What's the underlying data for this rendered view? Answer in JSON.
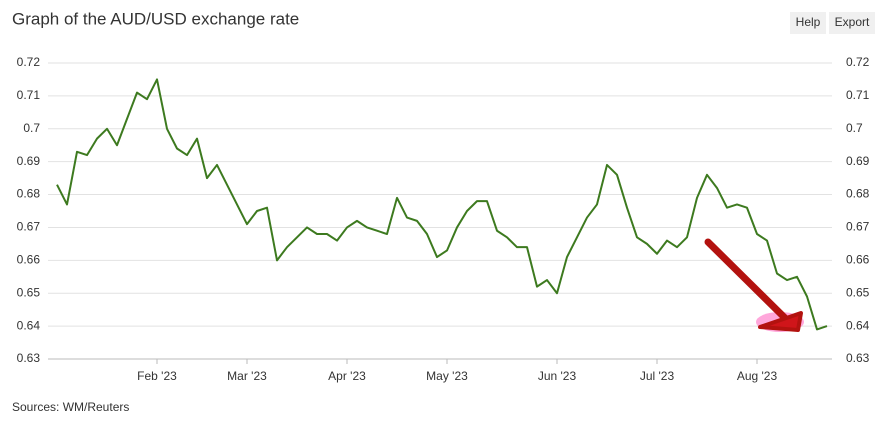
{
  "chart_data": {
    "type": "line",
    "title": "Graph of the AUD/USD exchange rate",
    "source": "Sources: WM/Reuters",
    "buttons": [
      "Help",
      "Export"
    ],
    "categories": [
      null,
      null,
      null,
      null,
      null,
      null,
      null,
      null,
      null,
      null,
      "Feb '23",
      null,
      null,
      null,
      null,
      null,
      null,
      null,
      null,
      "Mar '23",
      null,
      null,
      null,
      null,
      null,
      null,
      null,
      null,
      null,
      "Apr '23",
      null,
      null,
      null,
      null,
      null,
      null,
      null,
      null,
      null,
      "May '23",
      null,
      null,
      null,
      null,
      null,
      null,
      null,
      null,
      null,
      null,
      "Jun '23",
      null,
      null,
      null,
      null,
      null,
      null,
      null,
      null,
      null,
      "Jul '23",
      null,
      null,
      null,
      null,
      null,
      null,
      null,
      null,
      null,
      "Aug '23",
      null,
      null,
      null,
      null,
      null,
      null,
      null
    ],
    "series": [
      {
        "name": "AUD/USD",
        "color": "#3d7a1f",
        "values": [
          0.683,
          0.677,
          0.693,
          0.692,
          0.697,
          0.7,
          0.695,
          0.703,
          0.711,
          0.709,
          0.715,
          0.7,
          0.694,
          0.692,
          0.697,
          0.685,
          0.689,
          0.683,
          0.677,
          0.671,
          0.675,
          0.676,
          0.66,
          0.664,
          0.667,
          0.67,
          0.668,
          0.668,
          0.666,
          0.67,
          0.672,
          0.67,
          0.669,
          0.668,
          0.679,
          0.673,
          0.672,
          0.668,
          0.661,
          0.663,
          0.67,
          0.675,
          0.678,
          0.678,
          0.669,
          0.667,
          0.664,
          0.664,
          0.652,
          0.654,
          0.65,
          0.661,
          0.667,
          0.673,
          0.677,
          0.689,
          0.686,
          0.676,
          0.667,
          0.665,
          0.662,
          0.666,
          0.664,
          0.667,
          0.679,
          0.686,
          0.682,
          0.676,
          0.677,
          0.676,
          0.668,
          0.666,
          0.656,
          0.654,
          0.655,
          0.649,
          0.639,
          0.64
        ]
      }
    ],
    "ylim": [
      0.63,
      0.72
    ],
    "yticks": [
      0.63,
      0.64,
      0.65,
      0.66,
      0.67,
      0.68,
      0.69,
      0.7,
      0.71,
      0.72
    ],
    "grid": true
  }
}
